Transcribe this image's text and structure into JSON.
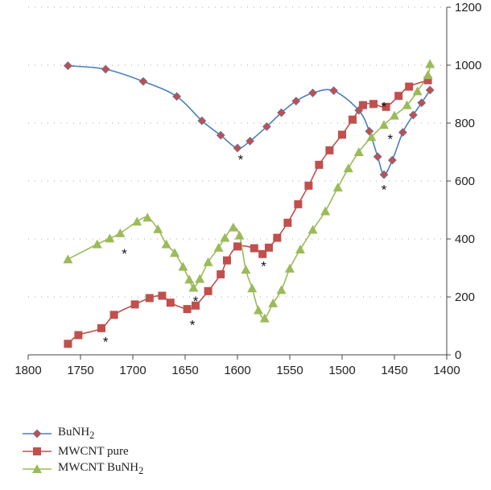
{
  "chart_data": {
    "type": "line",
    "title": "",
    "xlabel": "",
    "ylabel": "",
    "xlim": [
      1800,
      1400
    ],
    "x_reversed": true,
    "ylim": [
      0,
      1200
    ],
    "x_ticks": [
      1800,
      1750,
      1700,
      1650,
      1600,
      1550,
      1500,
      1450,
      1400
    ],
    "y_ticks": [
      0,
      200,
      400,
      600,
      800,
      1000,
      1200
    ],
    "y_axis_side": "right",
    "grid": "horizontal dotted",
    "legend_position": "bottom-left",
    "series": [
      {
        "name": "BuNH2",
        "name_main": "BuNH",
        "name_sub": "2",
        "color": "#4a7ebb",
        "marker": "diamond",
        "marker_color": "#c0504d",
        "x": [
          1762,
          1726,
          1690,
          1658,
          1634,
          1616,
          1600,
          1588,
          1572,
          1558,
          1544,
          1528,
          1508,
          1484,
          1474,
          1466,
          1460,
          1452,
          1442,
          1432,
          1424,
          1416
        ],
        "y": [
          998,
          986,
          944,
          892,
          808,
          758,
          714,
          738,
          788,
          836,
          876,
          904,
          912,
          844,
          772,
          684,
          622,
          672,
          768,
          828,
          870,
          914
        ]
      },
      {
        "name": "MWCNT pure",
        "color": "#c0504d",
        "marker": "square",
        "marker_color": "#c0504d",
        "x": [
          1762,
          1752,
          1730,
          1718,
          1698,
          1684,
          1672,
          1664,
          1648,
          1640,
          1628,
          1616,
          1610,
          1600,
          1584,
          1576,
          1570,
          1562,
          1552,
          1542,
          1532,
          1522,
          1512,
          1500,
          1490,
          1480,
          1470,
          1458,
          1446,
          1436,
          1418
        ],
        "y": [
          38,
          68,
          92,
          138,
          174,
          196,
          204,
          180,
          158,
          170,
          220,
          278,
          326,
          374,
          368,
          348,
          370,
          404,
          456,
          520,
          584,
          656,
          706,
          760,
          812,
          862,
          866,
          856,
          894,
          926,
          948
        ]
      },
      {
        "name": "MWCNT BuNH2",
        "name_main": "MWCNT BuNH",
        "name_sub": "2",
        "color": "#9bbb59",
        "marker": "triangle",
        "marker_color": "#9bbb59",
        "x": [
          1762,
          1734,
          1722,
          1712,
          1696,
          1686,
          1676,
          1668,
          1660,
          1652,
          1646,
          1642,
          1636,
          1628,
          1618,
          1612,
          1604,
          1598,
          1592,
          1586,
          1580,
          1574,
          1566,
          1558,
          1550,
          1540,
          1528,
          1516,
          1504,
          1494,
          1484,
          1472,
          1460,
          1450,
          1438,
          1428,
          1418,
          1416
        ],
        "y": [
          330,
          382,
          402,
          420,
          460,
          474,
          434,
          382,
          352,
          304,
          260,
          232,
          262,
          320,
          370,
          404,
          440,
          412,
          294,
          230,
          154,
          126,
          178,
          224,
          298,
          364,
          432,
          496,
          578,
          644,
          700,
          752,
          794,
          826,
          862,
          910,
          966,
          1004
        ]
      }
    ],
    "annotations": [
      {
        "text": "*",
        "x": 1597,
        "y": 680
      },
      {
        "text": "*",
        "x": 1726,
        "y": 52
      },
      {
        "text": "*",
        "x": 1708,
        "y": 356
      },
      {
        "text": "*",
        "x": 1643,
        "y": 110
      },
      {
        "text": "*",
        "x": 1640,
        "y": 192
      },
      {
        "text": "*",
        "x": 1575,
        "y": 312
      },
      {
        "text": "*",
        "x": 1460,
        "y": 862
      },
      {
        "text": "*",
        "x": 1454,
        "y": 752
      },
      {
        "text": "*",
        "x": 1460,
        "y": 576
      }
    ]
  }
}
